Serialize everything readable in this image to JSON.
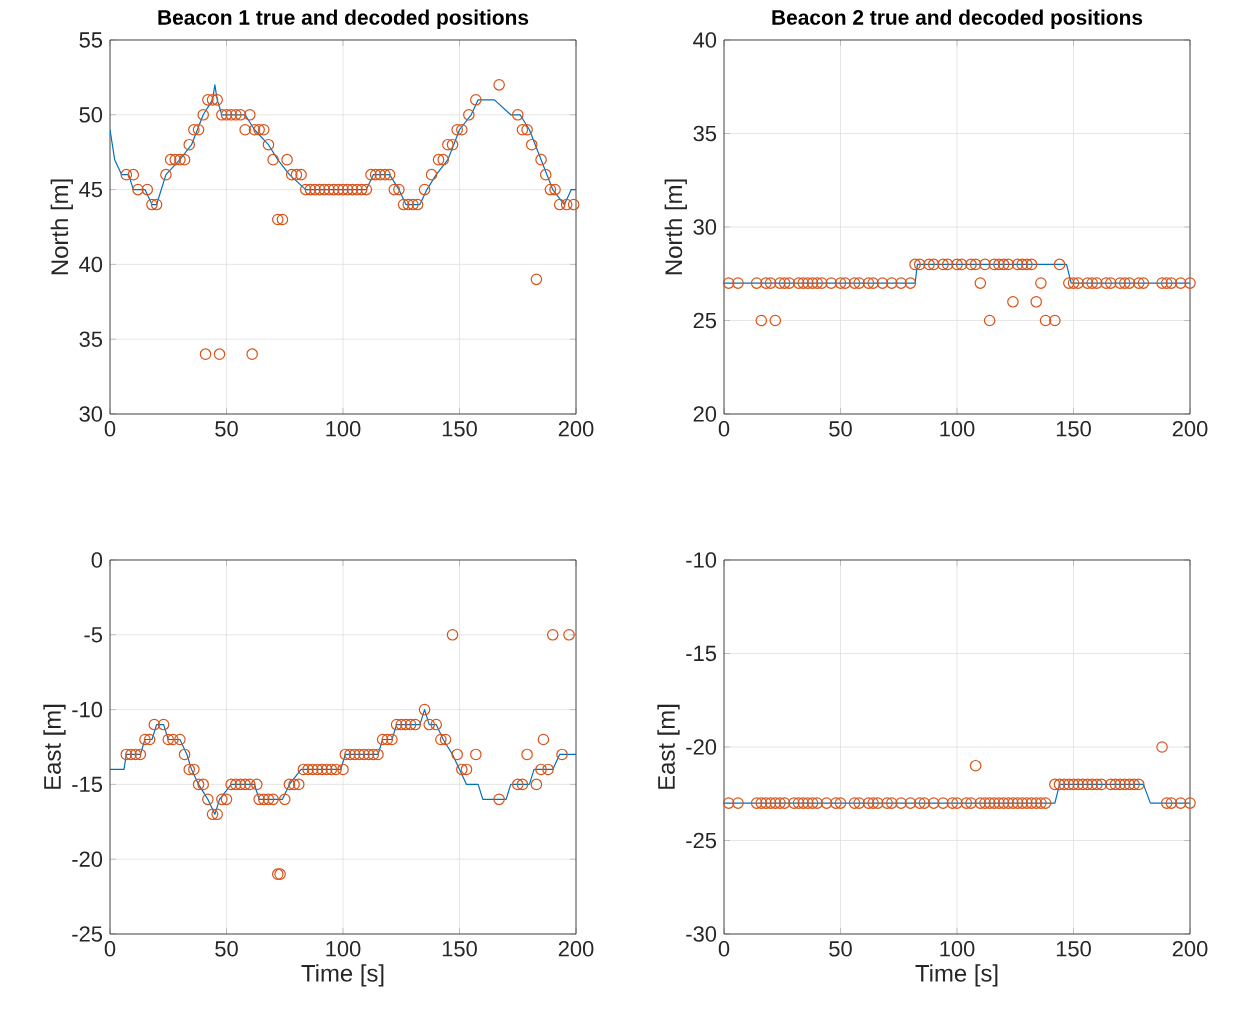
{
  "chart_data": [
    {
      "type": "line",
      "title": "Beacon 1 true and decoded positions",
      "ylabel": "North [m]",
      "xlim": [
        0,
        200
      ],
      "ylim": [
        30,
        55
      ],
      "xticks": [
        0,
        50,
        100,
        150,
        200
      ],
      "yticks": [
        30,
        35,
        40,
        45,
        50,
        55
      ],
      "grid": true,
      "series": [
        {
          "color": "#0072bd",
          "marker": "none",
          "x": [
            0,
            2,
            5,
            8,
            10,
            15,
            18,
            20,
            24,
            30,
            35,
            40,
            44,
            45,
            46,
            48,
            58,
            62,
            68,
            72,
            77,
            84,
            110,
            113,
            120,
            124,
            127,
            133,
            136,
            140,
            145,
            150,
            155,
            158,
            165,
            172,
            176,
            180,
            185,
            190,
            195,
            198,
            200
          ],
          "values": [
            49,
            47,
            46,
            46,
            45,
            45,
            44,
            44,
            46,
            47,
            48,
            50,
            51,
            52,
            51,
            50,
            50,
            49,
            48,
            47,
            46,
            45,
            45,
            46,
            46,
            45,
            44,
            44,
            45,
            46,
            47,
            49,
            50,
            51,
            51,
            50,
            50,
            49,
            47,
            45,
            44,
            45,
            45
          ]
        },
        {
          "type": "scatter",
          "color": "#d95319",
          "marker": "circle",
          "x": [
            7,
            10,
            12,
            16,
            18,
            20,
            24,
            26,
            28,
            30,
            32,
            34,
            36,
            38,
            40,
            41,
            42,
            44,
            46,
            47,
            48,
            50,
            52,
            54,
            56,
            58,
            60,
            61,
            62,
            64,
            66,
            68,
            70,
            72,
            74,
            76,
            78,
            80,
            82,
            84,
            86,
            88,
            90,
            92,
            94,
            96,
            98,
            100,
            102,
            104,
            106,
            108,
            110,
            112,
            114,
            116,
            118,
            120,
            122,
            124,
            126,
            128,
            130,
            132,
            135,
            138,
            141,
            143,
            145,
            147,
            149,
            151,
            154,
            157,
            167,
            175,
            177,
            179,
            181,
            183,
            185,
            187,
            189,
            191,
            193,
            196,
            199
          ],
          "values": [
            46,
            46,
            45,
            45,
            44,
            44,
            46,
            47,
            47,
            47,
            47,
            48,
            49,
            49,
            50,
            34,
            51,
            51,
            51,
            34,
            50,
            50,
            50,
            50,
            50,
            49,
            50,
            34,
            49,
            49,
            49,
            48,
            47,
            43,
            43,
            47,
            46,
            46,
            46,
            45,
            45,
            45,
            45,
            45,
            45,
            45,
            45,
            45,
            45,
            45,
            45,
            45,
            45,
            46,
            46,
            46,
            46,
            46,
            45,
            45,
            44,
            44,
            44,
            44,
            45,
            46,
            47,
            47,
            48,
            48,
            49,
            49,
            50,
            51,
            52,
            50,
            49,
            49,
            48,
            39,
            47,
            46,
            45,
            45,
            44,
            44,
            44
          ]
        }
      ]
    },
    {
      "type": "line",
      "title": "Beacon 2 true and decoded positions",
      "ylabel": "North [m]",
      "xlim": [
        0,
        200
      ],
      "ylim": [
        20,
        40
      ],
      "xticks": [
        0,
        50,
        100,
        150,
        200
      ],
      "yticks": [
        20,
        25,
        30,
        35,
        40
      ],
      "grid": true,
      "series": [
        {
          "color": "#0072bd",
          "marker": "none",
          "x": [
            0,
            82,
            83,
            147,
            149,
            200
          ],
          "values": [
            27,
            27,
            28,
            28,
            27,
            27
          ]
        },
        {
          "type": "scatter",
          "color": "#d95319",
          "marker": "circle",
          "x": [
            2,
            6,
            14,
            16,
            18,
            20,
            22,
            24,
            26,
            28,
            32,
            34,
            36,
            38,
            40,
            42,
            46,
            50,
            52,
            56,
            58,
            62,
            64,
            68,
            72,
            76,
            80,
            82,
            84,
            88,
            90,
            94,
            96,
            100,
            102,
            106,
            108,
            110,
            112,
            114,
            116,
            118,
            120,
            122,
            124,
            126,
            128,
            130,
            132,
            134,
            136,
            138,
            142,
            144,
            148,
            150,
            152,
            156,
            158,
            160,
            164,
            166,
            170,
            172,
            174,
            178,
            180,
            188,
            190,
            192,
            196,
            200
          ],
          "values": [
            27,
            27,
            27,
            25,
            27,
            27,
            25,
            27,
            27,
            27,
            27,
            27,
            27,
            27,
            27,
            27,
            27,
            27,
            27,
            27,
            27,
            27,
            27,
            27,
            27,
            27,
            27,
            28,
            28,
            28,
            28,
            28,
            28,
            28,
            28,
            28,
            28,
            27,
            28,
            25,
            28,
            28,
            28,
            28,
            26,
            28,
            28,
            28,
            28,
            26,
            27,
            25,
            25,
            28,
            27,
            27,
            27,
            27,
            27,
            27,
            27,
            27,
            27,
            27,
            27,
            27,
            27,
            27,
            27,
            27,
            27,
            27
          ]
        }
      ]
    },
    {
      "type": "line",
      "xlabel": "Time [s]",
      "ylabel": "East [m]",
      "xlim": [
        0,
        200
      ],
      "ylim": [
        -25,
        0
      ],
      "xticks": [
        0,
        50,
        100,
        150,
        200
      ],
      "yticks": [
        -25,
        -20,
        -15,
        -10,
        -5,
        0
      ],
      "grid": true,
      "series": [
        {
          "color": "#0072bd",
          "marker": "none",
          "x": [
            0,
            6,
            7,
            13,
            15,
            18,
            20,
            23,
            25,
            30,
            33,
            35,
            38,
            42,
            45,
            47,
            52,
            62,
            64,
            74,
            77,
            82,
            99,
            101,
            115,
            117,
            121,
            123,
            133,
            135,
            137,
            140,
            143,
            147,
            150,
            153,
            158,
            160,
            170,
            172,
            180,
            182,
            190,
            193,
            200
          ],
          "values": [
            -14,
            -14,
            -13,
            -13,
            -12,
            -12,
            -11,
            -11,
            -12,
            -12,
            -13,
            -14,
            -15,
            -16,
            -17,
            -16,
            -15,
            -15,
            -16,
            -16,
            -15,
            -14,
            -14,
            -13,
            -13,
            -12,
            -12,
            -11,
            -11,
            -10,
            -11,
            -11,
            -12,
            -13,
            -14,
            -15,
            -15,
            -16,
            -16,
            -15,
            -15,
            -14,
            -14,
            -13,
            -13
          ]
        },
        {
          "type": "scatter",
          "color": "#d95319",
          "marker": "circle",
          "x": [
            7,
            9,
            11,
            13,
            15,
            17,
            19,
            23,
            25,
            27,
            30,
            32,
            34,
            36,
            38,
            40,
            42,
            44,
            46,
            48,
            50,
            52,
            54,
            56,
            58,
            60,
            63,
            64,
            66,
            68,
            70,
            72,
            73,
            75,
            77,
            79,
            81,
            83,
            85,
            87,
            89,
            91,
            93,
            95,
            97,
            100,
            101,
            103,
            105,
            107,
            109,
            111,
            113,
            115,
            117,
            119,
            121,
            123,
            125,
            127,
            129,
            131,
            135,
            137,
            140,
            142,
            144,
            147,
            149,
            151,
            153,
            157,
            167,
            175,
            177,
            179,
            183,
            185,
            186,
            188,
            190,
            194,
            197
          ],
          "values": [
            -13,
            -13,
            -13,
            -13,
            -12,
            -12,
            -11,
            -11,
            -12,
            -12,
            -12,
            -13,
            -14,
            -14,
            -15,
            -15,
            -16,
            -17,
            -17,
            -16,
            -16,
            -15,
            -15,
            -15,
            -15,
            -15,
            -15,
            -16,
            -16,
            -16,
            -16,
            -21,
            -21,
            -16,
            -15,
            -15,
            -15,
            -14,
            -14,
            -14,
            -14,
            -14,
            -14,
            -14,
            -14,
            -14,
            -13,
            -13,
            -13,
            -13,
            -13,
            -13,
            -13,
            -13,
            -12,
            -12,
            -12,
            -11,
            -11,
            -11,
            -11,
            -11,
            -10,
            -11,
            -11,
            -12,
            -12,
            -5,
            -13,
            -14,
            -14,
            -13,
            -16,
            -15,
            -15,
            -13,
            -15,
            -14,
            -12,
            -14,
            -5,
            -13,
            -5
          ]
        }
      ]
    },
    {
      "type": "line",
      "xlabel": "Time [s]",
      "ylabel": "East [m]",
      "xlim": [
        0,
        200
      ],
      "ylim": [
        -30,
        -10
      ],
      "xticks": [
        0,
        50,
        100,
        150,
        200
      ],
      "yticks": [
        -30,
        -25,
        -20,
        -15,
        -10
      ],
      "grid": true,
      "series": [
        {
          "color": "#0072bd",
          "marker": "none",
          "x": [
            0,
            142,
            144,
            180,
            183,
            200
          ],
          "values": [
            -23,
            -23,
            -22,
            -22,
            -23,
            -23
          ]
        },
        {
          "type": "scatter",
          "color": "#d95319",
          "marker": "circle",
          "x": [
            2,
            6,
            14,
            16,
            18,
            20,
            22,
            24,
            26,
            30,
            32,
            34,
            36,
            38,
            40,
            44,
            48,
            50,
            56,
            58,
            62,
            64,
            66,
            70,
            72,
            76,
            80,
            84,
            86,
            90,
            94,
            98,
            100,
            104,
            106,
            108,
            110,
            112,
            114,
            116,
            118,
            120,
            122,
            124,
            126,
            128,
            130,
            132,
            134,
            136,
            138,
            142,
            144,
            146,
            148,
            150,
            152,
            154,
            156,
            158,
            160,
            162,
            166,
            168,
            170,
            172,
            174,
            176,
            178,
            188,
            190,
            192,
            196,
            200
          ],
          "values": [
            -23,
            -23,
            -23,
            -23,
            -23,
            -23,
            -23,
            -23,
            -23,
            -23,
            -23,
            -23,
            -23,
            -23,
            -23,
            -23,
            -23,
            -23,
            -23,
            -23,
            -23,
            -23,
            -23,
            -23,
            -23,
            -23,
            -23,
            -23,
            -23,
            -23,
            -23,
            -23,
            -23,
            -23,
            -23,
            -21,
            -23,
            -23,
            -23,
            -23,
            -23,
            -23,
            -23,
            -23,
            -23,
            -23,
            -23,
            -23,
            -23,
            -23,
            -23,
            -22,
            -22,
            -22,
            -22,
            -22,
            -22,
            -22,
            -22,
            -22,
            -22,
            -22,
            -22,
            -22,
            -22,
            -22,
            -22,
            -22,
            -22,
            -20,
            -23,
            -23,
            -23,
            -23
          ]
        }
      ]
    }
  ]
}
